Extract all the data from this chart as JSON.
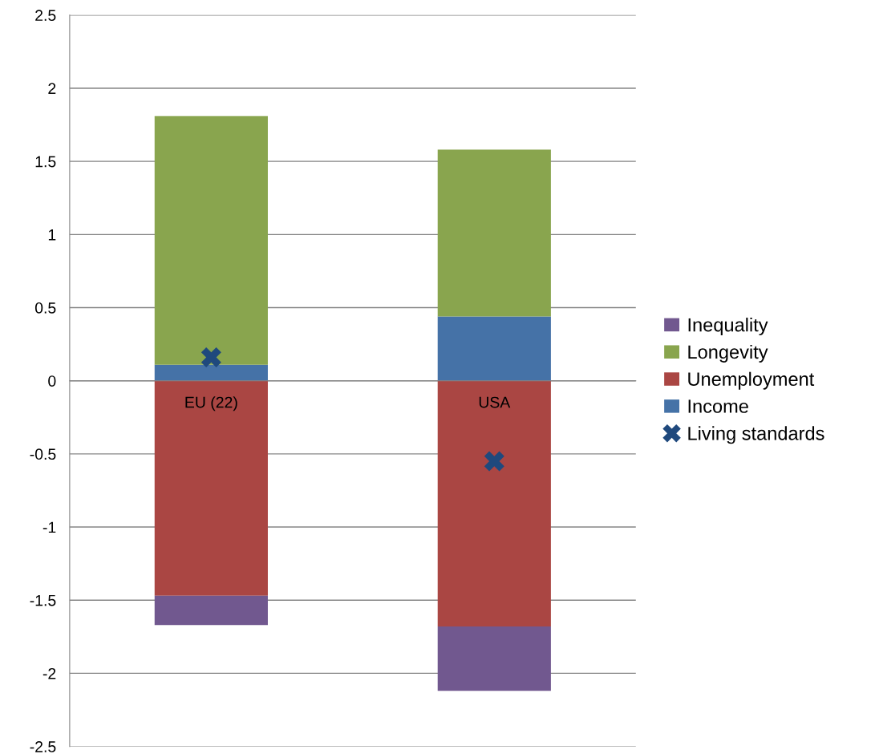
{
  "chart_data": {
    "type": "bar",
    "stacked": true,
    "categories": [
      "EU (22)",
      "USA"
    ],
    "series": [
      {
        "name": "Income",
        "color": "#4572a7",
        "values": [
          0.11,
          0.44
        ]
      },
      {
        "name": "Unemployment",
        "color": "#aa4643",
        "values": [
          -1.47,
          -1.68
        ]
      },
      {
        "name": "Longevity",
        "color": "#89a54e",
        "values": [
          1.7,
          1.14
        ]
      },
      {
        "name": "Inequality",
        "color": "#71588f",
        "values": [
          -0.2,
          -0.44
        ]
      },
      {
        "name": "Living standards",
        "type": "scatter",
        "color": "#1f497d",
        "marker": "cross",
        "values": [
          0.16,
          -0.55
        ]
      }
    ],
    "ylim": [
      -2.5,
      2.5
    ],
    "yticks": [
      -2.5,
      -2,
      -1.5,
      -1,
      -0.5,
      0,
      0.5,
      1,
      1.5,
      2,
      2.5
    ],
    "grid": "y",
    "legend": "right"
  }
}
